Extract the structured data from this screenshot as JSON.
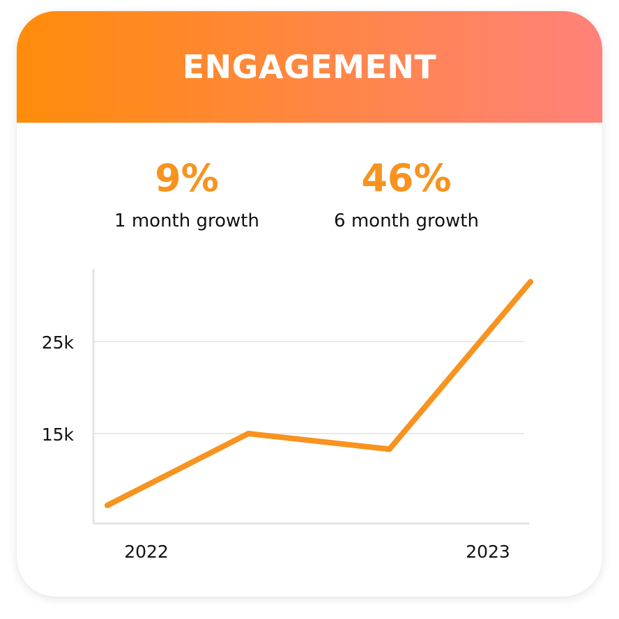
{
  "header": {
    "title": "ENGAGEMENT",
    "gradient_start": "#ff8c0a",
    "gradient_end": "#ff817a"
  },
  "stats": [
    {
      "value": "9%",
      "label": "1 month growth"
    },
    {
      "value": "46%",
      "label": "6 month growth"
    }
  ],
  "colors": {
    "accent": "#f7931e",
    "grid": "#e8e8e8",
    "axis": "#e3e3e3",
    "text": "#111111"
  },
  "chart_data": {
    "type": "line",
    "title": "",
    "xlabel": "",
    "ylabel": "",
    "x_tick_labels": [
      "2022",
      "2023"
    ],
    "y_ticks": [
      15000,
      25000
    ],
    "y_tick_labels": [
      "15k",
      "25k"
    ],
    "ylim": [
      5000,
      33000
    ],
    "grid": true,
    "x": [
      0,
      1,
      2,
      3
    ],
    "values": [
      7200,
      15000,
      13300,
      31500
    ],
    "line_color": "#f7931e"
  }
}
